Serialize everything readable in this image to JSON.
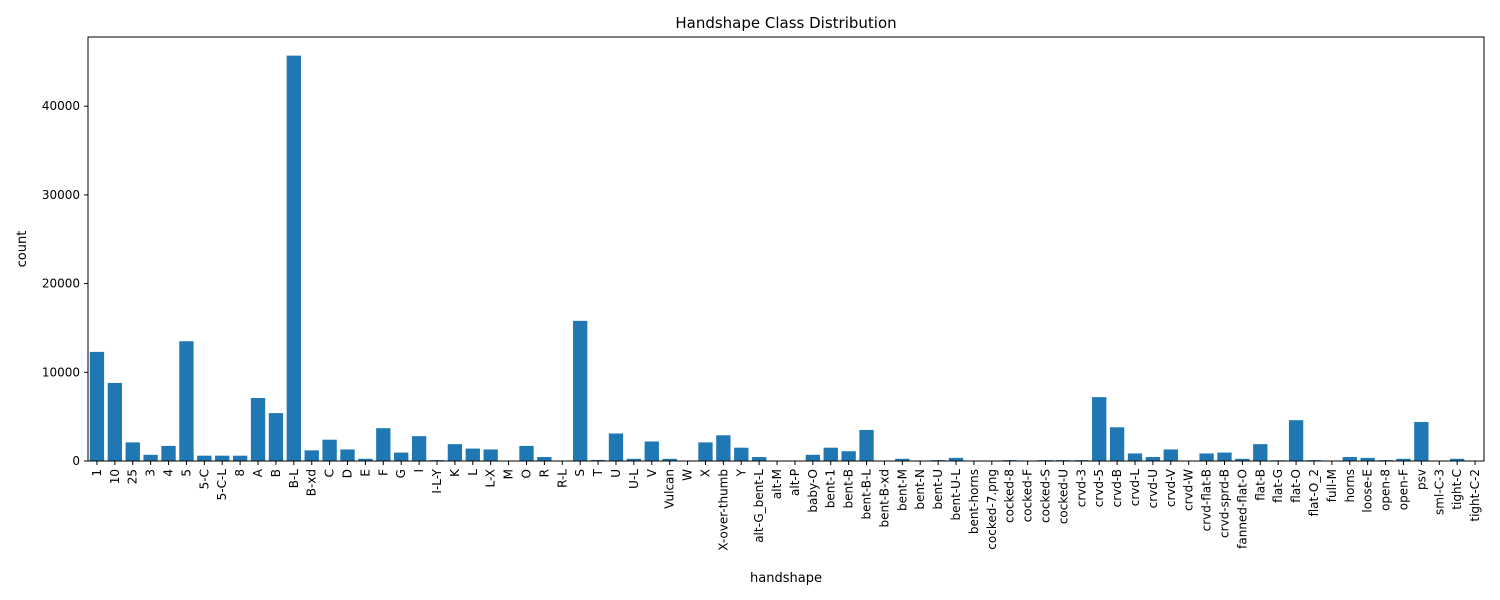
{
  "chart_data": {
    "type": "bar",
    "title": "Handshape Class Distribution",
    "xlabel": "handshape",
    "ylabel": "count",
    "ylim": [
      0,
      47800
    ],
    "yticks": [
      0,
      10000,
      20000,
      30000,
      40000
    ],
    "bar_color": "#1f77b4",
    "grid": false,
    "categories": [
      "1",
      "10",
      "25",
      "3",
      "4",
      "5",
      "5-C",
      "5-C-L",
      "8",
      "A",
      "B",
      "B-L",
      "B-xd",
      "C",
      "D",
      "E",
      "F",
      "G",
      "I",
      "I-L-Y",
      "K",
      "L",
      "L-X",
      "M",
      "O",
      "R",
      "R-L",
      "S",
      "T",
      "U",
      "U-L",
      "V",
      "Vulcan",
      "W",
      "X",
      "X-over-thumb",
      "Y",
      "alt-G_bent-L",
      "alt-M",
      "alt-P",
      "baby-O",
      "bent-1",
      "bent-B",
      "bent-B-L",
      "bent-B-xd",
      "bent-M",
      "bent-N",
      "bent-U",
      "bent-U-L",
      "bent-horns",
      "cocked-7.png",
      "cocked-8",
      "cocked-F",
      "cocked-S",
      "cocked-U",
      "crvd-3",
      "crvd-5",
      "crvd-B",
      "crvd-L",
      "crvd-U",
      "crvd-V",
      "crvd-W",
      "crvd-flat-B",
      "crvd-sprd-B",
      "fanned-flat-O",
      "flat-B",
      "flat-G",
      "flat-O",
      "flat-O_2",
      "full-M",
      "horns",
      "loose-E",
      "open-8",
      "open-F",
      "psv",
      "sml-C-3",
      "tight-C",
      "tight-C-2"
    ],
    "values": [
      12300,
      8800,
      2100,
      700,
      1700,
      13500,
      600,
      600,
      600,
      7100,
      5400,
      45700,
      1200,
      2400,
      1300,
      250,
      3700,
      950,
      2800,
      100,
      1900,
      1400,
      1300,
      10,
      1700,
      450,
      10,
      15800,
      120,
      3100,
      250,
      2200,
      250,
      10,
      2100,
      2900,
      1500,
      450,
      10,
      10,
      700,
      1500,
      1100,
      3500,
      10,
      250,
      10,
      100,
      350,
      10,
      10,
      100,
      10,
      100,
      100,
      100,
      7200,
      3800,
      850,
      450,
      1300,
      10,
      850,
      950,
      250,
      1900,
      80,
      4600,
      100,
      10,
      450,
      350,
      100,
      250,
      4400,
      10,
      250,
      10
    ]
  }
}
